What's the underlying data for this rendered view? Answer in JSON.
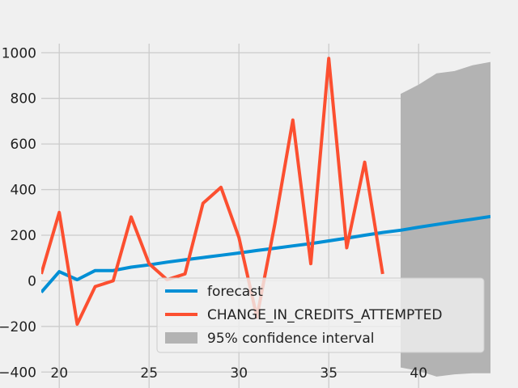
{
  "chart_data": {
    "type": "line",
    "title": "",
    "xlabel": "",
    "ylabel": "",
    "xlim": [
      19,
      44
    ],
    "ylim": [
      -470,
      1040
    ],
    "grid": true,
    "legend_position": "bottom-center",
    "x_ticks": [
      20,
      25,
      30,
      35,
      40
    ],
    "x_tick_labels": [
      "20",
      "25",
      "30",
      "35",
      "40"
    ],
    "y_ticks": [
      -400,
      -200,
      0,
      200,
      400,
      600,
      800,
      1000
    ],
    "y_tick_labels": [
      "−400",
      "−200",
      "0",
      "200",
      "400",
      "600",
      "800",
      "1000"
    ],
    "series": [
      {
        "name": "forecast",
        "color": "#008fd5",
        "x": [
          19,
          20,
          21,
          22,
          23,
          24,
          25,
          26,
          27,
          28,
          29,
          30,
          31,
          32,
          33,
          34,
          35,
          36,
          37,
          38,
          39,
          40,
          41,
          42,
          43,
          44
        ],
        "y": [
          -50,
          40,
          5,
          45,
          45,
          60,
          70,
          82,
          92,
          102,
          112,
          122,
          133,
          143,
          153,
          163,
          175,
          187,
          200,
          212,
          222,
          235,
          247,
          259,
          270,
          282
        ]
      },
      {
        "name": "CHANGE_IN_CREDITS_ATTEMPTED",
        "color": "#fc4f30",
        "x": [
          19,
          20,
          21,
          22,
          23,
          24,
          25,
          26,
          27,
          28,
          29,
          30,
          31,
          32,
          33,
          34,
          35,
          36,
          37,
          38
        ],
        "y": [
          30,
          300,
          -190,
          -25,
          0,
          280,
          75,
          5,
          30,
          340,
          410,
          190,
          -160,
          250,
          705,
          75,
          975,
          145,
          520,
          30
        ]
      }
    ],
    "confidence_interval": {
      "name": "95% confidence interval",
      "color": "#b3b3b3",
      "x": [
        39,
        40,
        41,
        42,
        43,
        44
      ],
      "upper": [
        820,
        860,
        910,
        920,
        945,
        960
      ],
      "lower": [
        -380,
        -395,
        -420,
        -410,
        -405,
        -405
      ]
    }
  }
}
